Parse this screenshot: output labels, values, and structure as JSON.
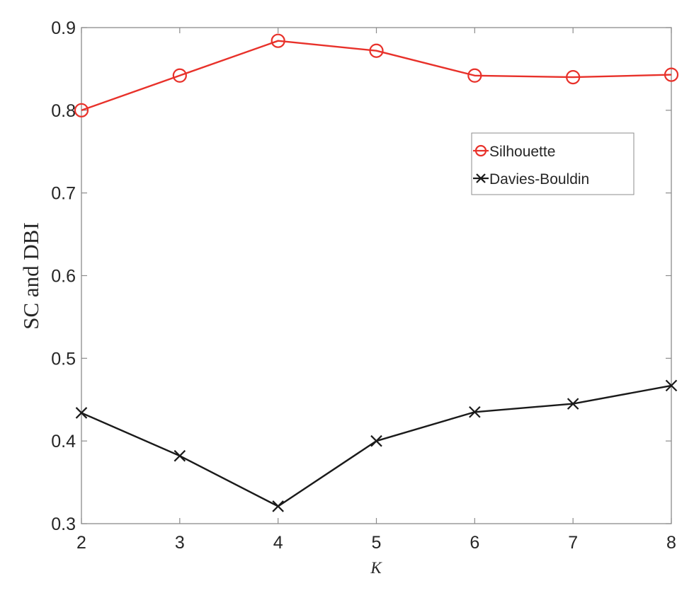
{
  "chart_data": {
    "type": "line",
    "title": "",
    "xlabel": "K",
    "ylabel": "SC and DBI",
    "x": [
      2,
      3,
      4,
      5,
      6,
      7,
      8
    ],
    "xlim": [
      2,
      8
    ],
    "ylim": [
      0.3,
      0.9
    ],
    "xticks": [
      "2",
      "3",
      "4",
      "5",
      "6",
      "7",
      "8"
    ],
    "yticks": [
      "0.3",
      "0.4",
      "0.5",
      "0.6",
      "0.7",
      "0.8",
      "0.9"
    ],
    "grid": false,
    "legend_position": "upper right (inside)",
    "series": [
      {
        "name": "Silhouette",
        "color": "#E8312A",
        "marker": "circle",
        "values": [
          0.8,
          0.842,
          0.884,
          0.872,
          0.842,
          0.84,
          0.843
        ]
      },
      {
        "name": "Davies-Bouldin",
        "color": "#1A1A1A",
        "marker": "x",
        "values": [
          0.434,
          0.382,
          0.321,
          0.4,
          0.435,
          0.445,
          0.467
        ]
      }
    ]
  },
  "legend": {
    "items": [
      "Silhouette",
      "Davies-Bouldin"
    ]
  }
}
